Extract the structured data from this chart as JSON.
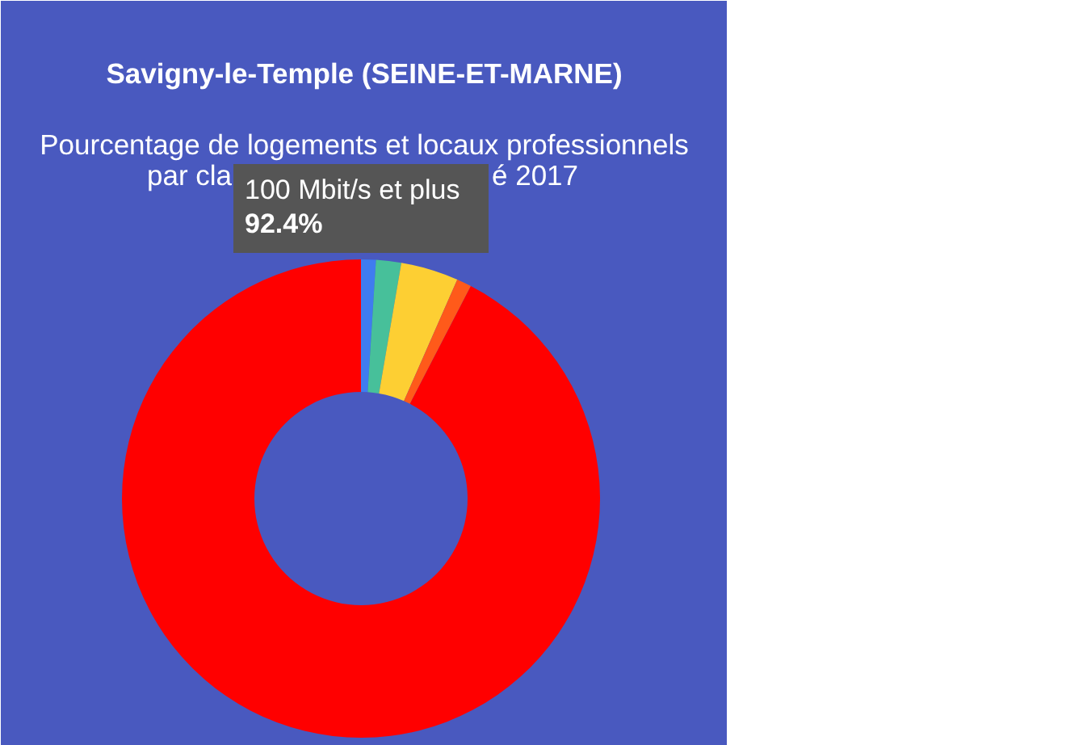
{
  "chart_data": {
    "type": "donut",
    "title": "Savigny-le-Temple (SEINE-ET-MARNE)",
    "subtitle": "Pourcentage de logements et locaux professionnels",
    "annotations": [
      "par cla",
      "é 2017"
    ],
    "categories": [
      null,
      null,
      null,
      null,
      "100 Mbit/s et plus"
    ],
    "values": [
      1.0,
      1.7,
      3.9,
      1.0,
      92.4
    ],
    "colors": [
      "#3f7cf0",
      "#47c09a",
      "#fdcf33",
      "#ff5a1a",
      "#ff0000"
    ],
    "value_labels": [
      null,
      null,
      null,
      null,
      "92.4%"
    ]
  }
}
